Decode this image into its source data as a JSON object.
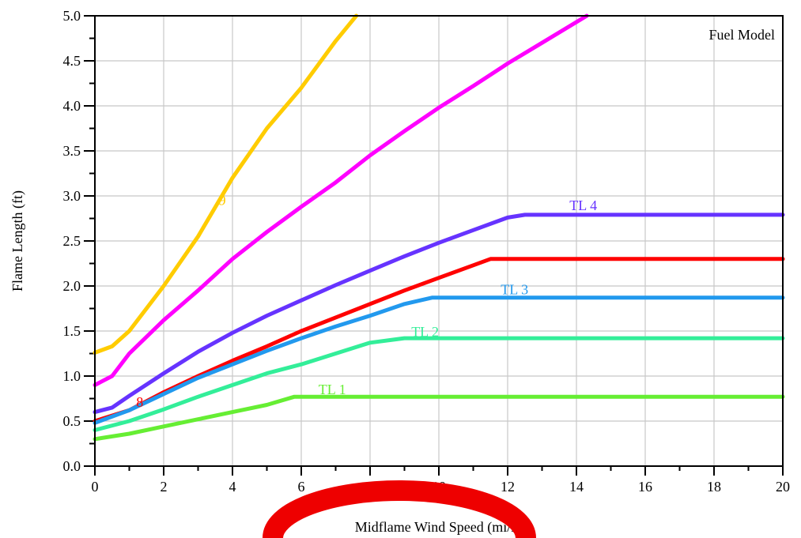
{
  "chart_data": {
    "type": "line",
    "title": "",
    "legend_title": "Fuel Model",
    "legend_placement": "top-right",
    "xlabel": "Midflame Wind Speed (mi/h)",
    "ylabel": "Flame Length (ft)",
    "xlim": [
      0,
      20
    ],
    "ylim": [
      0,
      5
    ],
    "x_ticks": [
      "0",
      "2",
      "4",
      "6",
      "8",
      "10",
      "12",
      "14",
      "16",
      "18",
      "20"
    ],
    "y_ticks": [
      "0.0",
      "0.5",
      "1.0",
      "1.5",
      "2.0",
      "2.5",
      "3.0",
      "3.5",
      "4.0",
      "4.5",
      "5.0"
    ],
    "grid": true,
    "series": [
      {
        "name": "9",
        "color": "#FFCC00",
        "label_at": [
          3.6,
          2.9
        ],
        "points": [
          [
            0,
            1.26
          ],
          [
            0.5,
            1.33
          ],
          [
            1,
            1.5
          ],
          [
            2,
            2.0
          ],
          [
            3,
            2.55
          ],
          [
            4,
            3.2
          ],
          [
            5,
            3.75
          ],
          [
            6,
            4.2
          ],
          [
            7,
            4.72
          ],
          [
            7.6,
            5.0
          ]
        ]
      },
      {
        "name": "",
        "color": "#FF00FF",
        "label_at": null,
        "points": [
          [
            0,
            0.9
          ],
          [
            0.5,
            1.0
          ],
          [
            1,
            1.25
          ],
          [
            2,
            1.62
          ],
          [
            3,
            1.95
          ],
          [
            4,
            2.3
          ],
          [
            5,
            2.6
          ],
          [
            6,
            2.88
          ],
          [
            7,
            3.15
          ],
          [
            8,
            3.45
          ],
          [
            9,
            3.72
          ],
          [
            10,
            3.98
          ],
          [
            11,
            4.22
          ],
          [
            12,
            4.47
          ],
          [
            13,
            4.7
          ],
          [
            14.3,
            5.0
          ]
        ]
      },
      {
        "name": "TL 4",
        "color": "#6633FF",
        "label_at": [
          13.8,
          2.84
        ],
        "points": [
          [
            0,
            0.6
          ],
          [
            0.5,
            0.65
          ],
          [
            1,
            0.78
          ],
          [
            2,
            1.03
          ],
          [
            3,
            1.27
          ],
          [
            4,
            1.48
          ],
          [
            5,
            1.67
          ],
          [
            6,
            1.84
          ],
          [
            7,
            2.01
          ],
          [
            8,
            2.17
          ],
          [
            9,
            2.33
          ],
          [
            10,
            2.48
          ],
          [
            11,
            2.62
          ],
          [
            12,
            2.76
          ],
          [
            12.5,
            2.79
          ],
          [
            20,
            2.79
          ]
        ]
      },
      {
        "name": "8",
        "color": "#FF0000",
        "label_at": [
          1.2,
          0.66
        ],
        "points": [
          [
            0,
            0.5
          ],
          [
            1,
            0.62
          ],
          [
            2,
            0.82
          ],
          [
            3,
            1.0
          ],
          [
            4,
            1.17
          ],
          [
            5,
            1.33
          ],
          [
            6,
            1.5
          ],
          [
            7,
            1.65
          ],
          [
            8,
            1.8
          ],
          [
            9,
            1.95
          ],
          [
            10,
            2.09
          ],
          [
            11,
            2.23
          ],
          [
            11.5,
            2.3
          ],
          [
            20,
            2.3
          ]
        ]
      },
      {
        "name": "TL 3",
        "color": "#2299EE",
        "label_at": [
          11.8,
          1.91
        ],
        "points": [
          [
            0,
            0.48
          ],
          [
            1,
            0.62
          ],
          [
            2,
            0.8
          ],
          [
            3,
            0.98
          ],
          [
            4,
            1.13
          ],
          [
            5,
            1.28
          ],
          [
            6,
            1.42
          ],
          [
            7,
            1.55
          ],
          [
            8,
            1.67
          ],
          [
            9,
            1.8
          ],
          [
            9.8,
            1.87
          ],
          [
            20,
            1.87
          ]
        ]
      },
      {
        "name": "TL 2",
        "color": "#33EE99",
        "label_at": [
          9.2,
          1.44
        ],
        "points": [
          [
            0,
            0.4
          ],
          [
            1,
            0.5
          ],
          [
            2,
            0.63
          ],
          [
            3,
            0.77
          ],
          [
            4,
            0.9
          ],
          [
            5,
            1.03
          ],
          [
            6,
            1.13
          ],
          [
            7,
            1.25
          ],
          [
            8,
            1.37
          ],
          [
            9,
            1.42
          ],
          [
            20,
            1.42
          ]
        ]
      },
      {
        "name": "TL 1",
        "color": "#66EE33",
        "label_at": [
          6.5,
          0.8
        ],
        "points": [
          [
            0,
            0.3
          ],
          [
            1,
            0.36
          ],
          [
            2,
            0.44
          ],
          [
            3,
            0.52
          ],
          [
            4,
            0.6
          ],
          [
            5,
            0.68
          ],
          [
            5.8,
            0.77
          ],
          [
            20,
            0.77
          ]
        ]
      }
    ]
  }
}
